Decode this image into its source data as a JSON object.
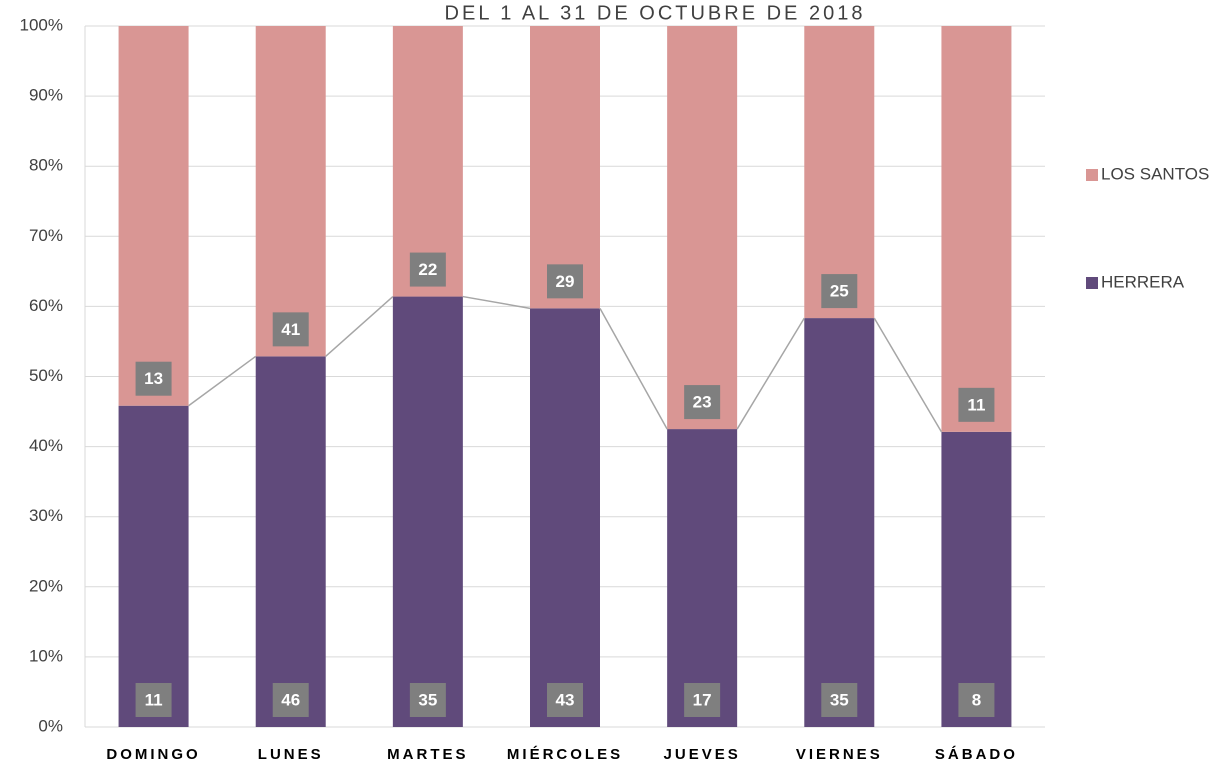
{
  "chart_data": {
    "type": "stacked_percent",
    "subtitle": "DEL 1 AL 31 DE OCTUBRE DE 2018",
    "categories": [
      "DOMINGO",
      "LUNES",
      "MARTES",
      "MIÉRCOLES",
      "JUEVES",
      "VIERNES",
      "SÁBADO"
    ],
    "series": [
      {
        "name": "HERRERA",
        "color": "#604a7b",
        "values": [
          11,
          46,
          35,
          43,
          17,
          35,
          8
        ]
      },
      {
        "name": "LOS SANTOS",
        "color": "#d99694",
        "values": [
          13,
          41,
          22,
          29,
          23,
          25,
          11
        ]
      }
    ],
    "ylim": [
      0,
      100
    ],
    "yticks": [
      {
        "value": 0,
        "label": "0%"
      },
      {
        "value": 10,
        "label": "10%"
      },
      {
        "value": 20,
        "label": "20%"
      },
      {
        "value": 30,
        "label": "30%"
      },
      {
        "value": 40,
        "label": "40%"
      },
      {
        "value": 50,
        "label": "50%"
      },
      {
        "value": 60,
        "label": "60%"
      },
      {
        "value": 70,
        "label": "70%"
      },
      {
        "value": 80,
        "label": "80%"
      },
      {
        "value": 90,
        "label": "90%"
      },
      {
        "value": 100,
        "label": "100%"
      }
    ],
    "grid": true,
    "legend": "right",
    "series_lines": true
  }
}
